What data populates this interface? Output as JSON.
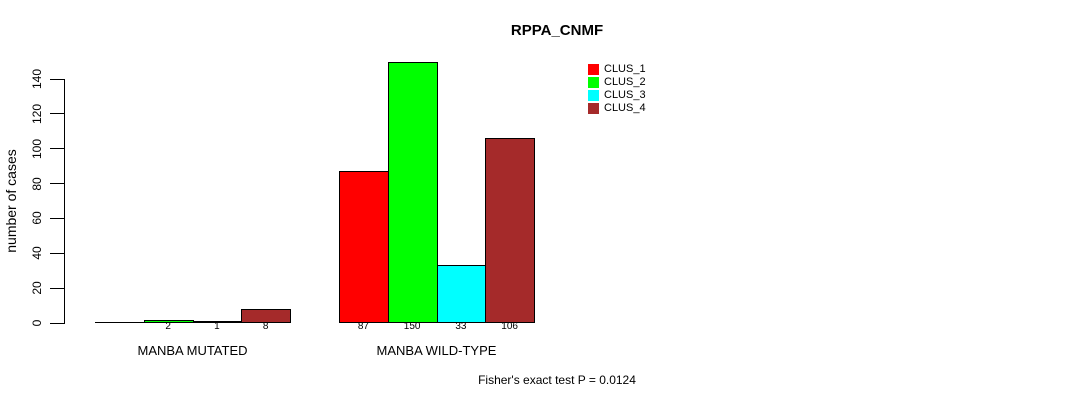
{
  "chart_data": {
    "type": "bar",
    "title": "RPPA_CNMF",
    "ylabel": "number of cases",
    "xlabel": "",
    "ylim": [
      0,
      140
    ],
    "yticks": [
      0,
      20,
      40,
      60,
      80,
      100,
      120,
      140
    ],
    "grid": false,
    "legend_position": "top-right",
    "legend": [
      "CLUS_1",
      "CLUS_2",
      "CLUS_3",
      "CLUS_4"
    ],
    "colors": [
      "#FF0000",
      "#00FF00",
      "#00FFFF",
      "#A52A2A"
    ],
    "groups": [
      {
        "label": "MANBA MUTATED",
        "values": [
          0,
          2,
          1,
          8
        ],
        "bar_labels": [
          "",
          "2",
          "1",
          "8"
        ]
      },
      {
        "label": "MANBA WILD-TYPE",
        "values": [
          87,
          150,
          33,
          106
        ],
        "bar_labels": [
          "87",
          "150",
          "33",
          "106"
        ]
      }
    ],
    "footnote": "Fisher's exact test P = 0.0124"
  }
}
